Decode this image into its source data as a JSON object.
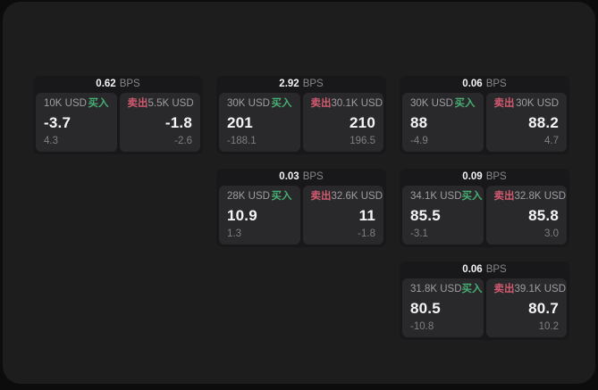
{
  "labels": {
    "bps_suffix": "BPS",
    "buy_label": "买入",
    "sell_label": "卖出"
  },
  "colors": {
    "buy_green": "#47ad72",
    "sell_red": "#d15a6e",
    "panel_bg": "#1d1d1e",
    "card_bg": "#18181a",
    "tile_bg": "#29292b"
  },
  "cards": [
    {
      "bps": "0.62",
      "grid": {
        "row": 1,
        "col": 1
      },
      "buy": {
        "size": "10K USD",
        "value": "-3.7",
        "delta": "4.3"
      },
      "sell": {
        "size": "5.5K USD",
        "value": "-1.8",
        "delta": "-2.6"
      }
    },
    {
      "bps": "2.92",
      "grid": {
        "row": 1,
        "col": 2
      },
      "buy": {
        "size": "30K USD",
        "value": "201",
        "delta": "-188.1"
      },
      "sell": {
        "size": "30.1K USD",
        "value": "210",
        "delta": "196.5"
      }
    },
    {
      "bps": "0.06",
      "grid": {
        "row": 1,
        "col": 3
      },
      "buy": {
        "size": "30K USD",
        "value": "88",
        "delta": "-4.9"
      },
      "sell": {
        "size": "30K USD",
        "value": "88.2",
        "delta": "4.7"
      }
    },
    {
      "bps": "0.03",
      "grid": {
        "row": 2,
        "col": 2
      },
      "buy": {
        "size": "28K USD",
        "value": "10.9",
        "delta": "1.3"
      },
      "sell": {
        "size": "32.6K USD",
        "value": "11",
        "delta": "-1.8"
      }
    },
    {
      "bps": "0.09",
      "grid": {
        "row": 2,
        "col": 3
      },
      "buy": {
        "size": "34.1K USD",
        "value": "85.5",
        "delta": "-3.1"
      },
      "sell": {
        "size": "32.8K USD",
        "value": "85.8",
        "delta": "3.0"
      }
    },
    {
      "bps": "0.06",
      "grid": {
        "row": 3,
        "col": 3
      },
      "buy": {
        "size": "31.8K USD",
        "value": "80.5",
        "delta": "-10.8"
      },
      "sell": {
        "size": "39.1K USD",
        "value": "80.7",
        "delta": "10.2"
      }
    }
  ]
}
